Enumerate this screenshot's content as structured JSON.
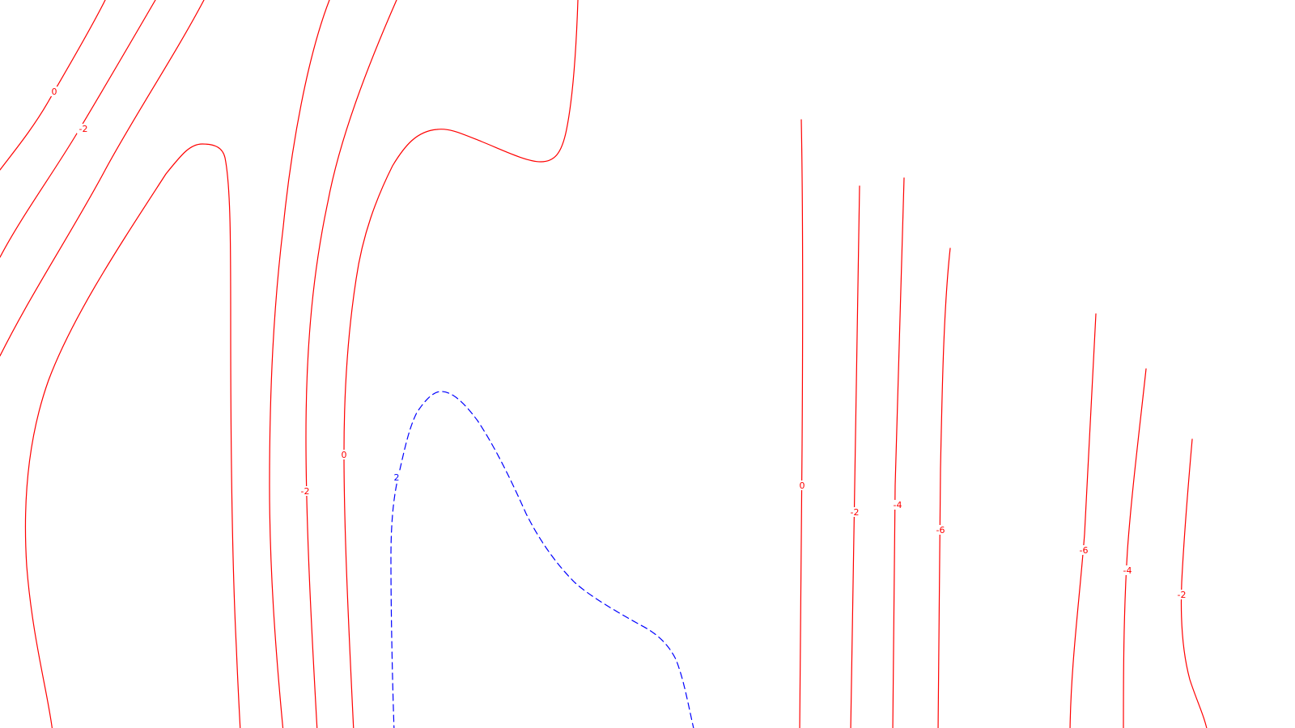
{
  "colors": {
    "negative": "#ff0000",
    "positive": "#0000ff",
    "background": "#ffffff"
  },
  "contours": [
    {
      "id": "c1",
      "level": "0",
      "style": "solid"
    },
    {
      "id": "c2",
      "level": "-2",
      "style": "solid"
    },
    {
      "id": "c3",
      "level": "",
      "style": "solid"
    },
    {
      "id": "c4",
      "level": "",
      "style": "solid"
    },
    {
      "id": "c5",
      "level": "-2",
      "style": "solid"
    },
    {
      "id": "c6",
      "level": "0",
      "style": "solid"
    },
    {
      "id": "c7",
      "level": "2",
      "style": "dashed"
    },
    {
      "id": "c8",
      "level": "0",
      "style": "solid"
    },
    {
      "id": "c9",
      "level": "-2",
      "style": "solid"
    },
    {
      "id": "c10",
      "level": "-4",
      "style": "solid"
    },
    {
      "id": "c11",
      "level": "-6",
      "style": "solid"
    },
    {
      "id": "c12",
      "level": "-6",
      "style": "solid"
    },
    {
      "id": "c13",
      "level": "-4",
      "style": "solid"
    },
    {
      "id": "c14",
      "level": "-2",
      "style": "solid"
    }
  ]
}
